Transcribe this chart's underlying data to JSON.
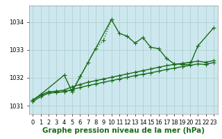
{
  "title": "Graphe pression niveau de la mer (hPa)",
  "bg_color": "#cce8ee",
  "outer_bg": "#ffffff",
  "grid_color": "#aacccc",
  "line_color": "#1a6b1a",
  "linewidth": 1.0,
  "markersize": 4,
  "title_fontsize": 7.5,
  "tick_fontsize": 6,
  "yticks": [
    1031,
    1032,
    1033,
    1034
  ],
  "ylim": [
    1030.7,
    1034.6
  ],
  "xlim": [
    -0.5,
    23.5
  ],
  "line_dotted_x": [
    0,
    1,
    3,
    4,
    5,
    6,
    7,
    8,
    9,
    10
  ],
  "line_dotted_y": [
    1031.2,
    1031.4,
    1031.5,
    1031.5,
    1031.55,
    1032.05,
    1032.55,
    1033.05,
    1033.35,
    1034.1
  ],
  "line_solid_x": [
    0,
    1,
    4,
    5,
    10,
    11,
    12,
    13,
    14,
    15,
    16,
    17,
    18,
    19,
    20,
    21,
    23
  ],
  "line_solid_y": [
    1031.2,
    1031.4,
    1032.1,
    1031.5,
    1034.1,
    1033.6,
    1033.5,
    1033.25,
    1033.45,
    1033.1,
    1033.05,
    1032.7,
    1032.5,
    1032.48,
    1032.48,
    1033.15,
    1033.8
  ],
  "line_flat1_x": [
    0,
    1,
    2,
    3,
    4,
    5,
    6,
    7,
    8,
    9,
    10,
    11,
    12,
    13,
    14,
    15,
    16,
    17,
    18,
    19,
    20,
    21,
    22,
    23
  ],
  "line_flat1_y": [
    1031.15,
    1031.32,
    1031.45,
    1031.47,
    1031.5,
    1031.58,
    1031.65,
    1031.72,
    1031.78,
    1031.84,
    1031.9,
    1031.96,
    1032.02,
    1032.08,
    1032.13,
    1032.18,
    1032.24,
    1032.3,
    1032.35,
    1032.4,
    1032.45,
    1032.5,
    1032.48,
    1032.55
  ],
  "line_flat2_x": [
    0,
    1,
    2,
    3,
    4,
    5,
    6,
    7,
    8,
    9,
    10,
    11,
    12,
    13,
    14,
    15,
    16,
    17,
    18,
    19,
    20,
    21,
    22,
    23
  ],
  "line_flat2_y": [
    1031.2,
    1031.38,
    1031.5,
    1031.52,
    1031.56,
    1031.68,
    1031.76,
    1031.84,
    1031.9,
    1031.96,
    1032.02,
    1032.08,
    1032.14,
    1032.2,
    1032.26,
    1032.32,
    1032.38,
    1032.44,
    1032.48,
    1032.52,
    1032.56,
    1032.6,
    1032.56,
    1032.62
  ]
}
